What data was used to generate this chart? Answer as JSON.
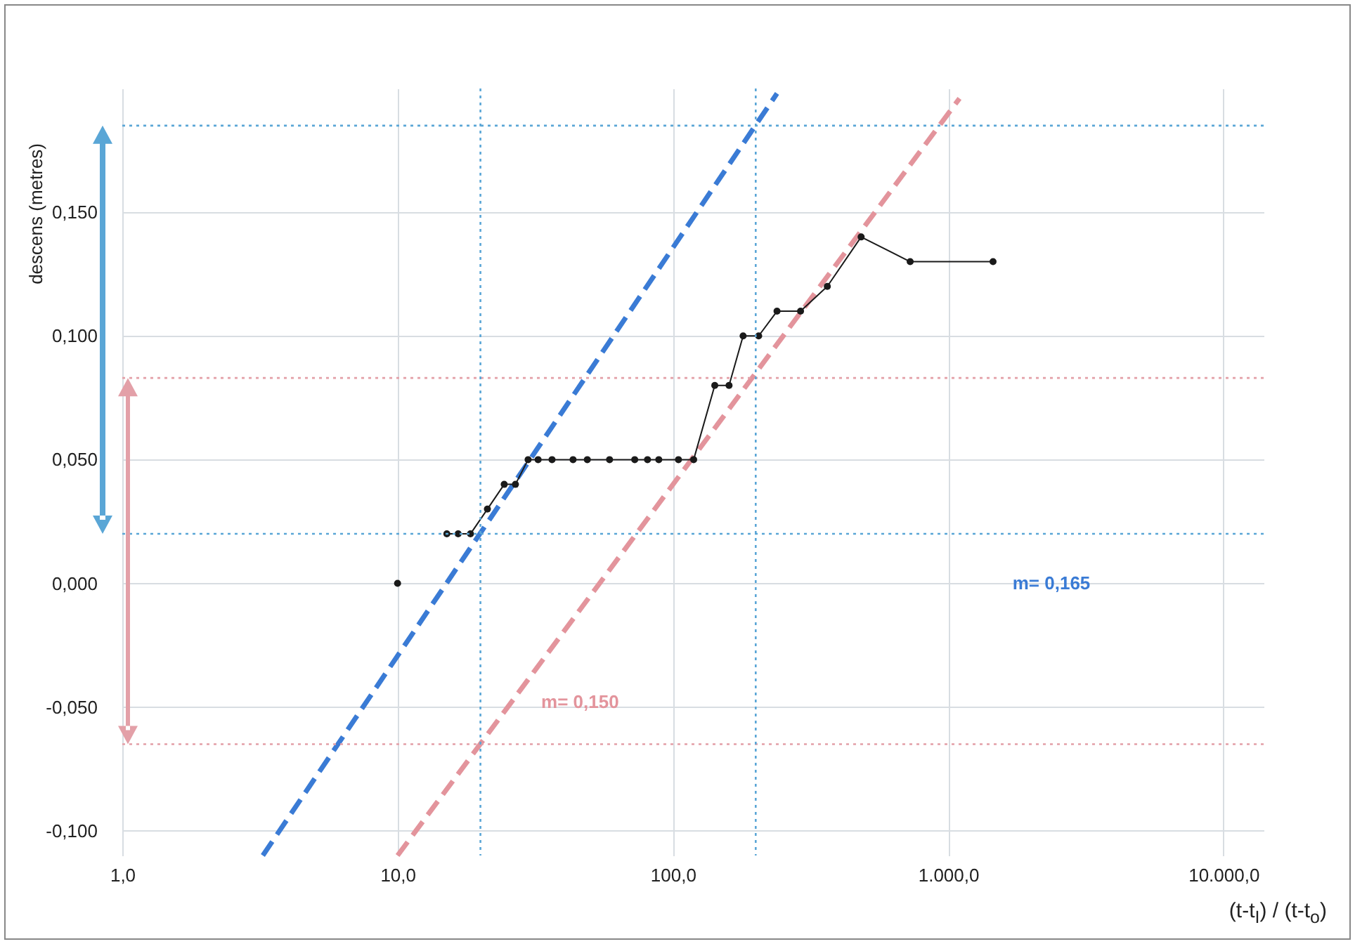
{
  "chart_data": {
    "type": "line",
    "xlabel": "(t-t$_{I}$) / (t-t$_{o}$)",
    "ylabel": "descens (metres)",
    "log": "x",
    "grid": true,
    "marker": "circle",
    "xlim": [
      1,
      14000
    ],
    "xticks": [
      {
        "value": 1,
        "label": "1,0"
      },
      {
        "value": 10,
        "label": "10,0"
      },
      {
        "value": 100,
        "label": "100,0"
      },
      {
        "value": 1000,
        "label": "1.000,0"
      },
      {
        "value": 10000,
        "label": "10.000,0"
      }
    ],
    "ylim": [
      -0.11,
      0.2
    ],
    "yticks": [
      {
        "value": -0.1,
        "label": "-0,100"
      },
      {
        "value": -0.05,
        "label": "-0,050"
      },
      {
        "value": 0,
        "label": "0,000"
      },
      {
        "value": 0.05,
        "label": "0,050"
      },
      {
        "value": 0.1,
        "label": "0,100"
      },
      {
        "value": 0.15,
        "label": "0,150"
      }
    ],
    "series": [
      {
        "type": "scatter",
        "color": "#1a1a1a",
        "x": [
          10
        ],
        "values": [
          0
        ]
      },
      {
        "type": "line",
        "color": "#1a1a1a",
        "x": [
          15.1,
          16.6,
          18.4,
          21.2,
          24.4,
          26.8,
          29.8,
          32.4,
          36.4,
          43.4,
          48.9,
          58.9,
          72.7,
          80.9,
          88.9,
          104.8,
          119,
          142,
          160,
          180,
          205,
          239,
          291,
          364,
          483,
          728,
          1456
        ],
        "values": [
          0.02,
          0.02,
          0.02,
          0.03,
          0.04,
          0.04,
          0.05,
          0.05,
          0.05,
          0.05,
          0.05,
          0.05,
          0.05,
          0.05,
          0.05,
          0.05,
          0.05,
          0.08,
          0.08,
          0.1,
          0.1,
          0.11,
          0.11,
          0.12,
          0.14,
          0.13,
          0.13
        ]
      },
      {
        "type": "line",
        "color": "#3a7bd5",
        "marker": "none",
        "line_style": "dashed",
        "x": [
          3.24,
          239
        ],
        "values": [
          -0.11,
          0.198
        ]
      },
      {
        "type": "line",
        "color": "#e3949c",
        "marker": "none",
        "line_style": "dashed",
        "x": [
          10,
          1100
        ],
        "values": [
          -0.11,
          0.196
        ]
      }
    ],
    "ref_lines": [
      {
        "axis": "y",
        "value": 0.185,
        "color": "#5aa6d6",
        "line_style": "dotted"
      },
      {
        "axis": "y",
        "value": 0.02,
        "color": "#5aa6d6",
        "line_style": "dotted"
      },
      {
        "axis": "y",
        "value": 0.083,
        "color": "#e3a0a8",
        "line_style": "dotted"
      },
      {
        "axis": "y",
        "value": -0.065,
        "color": "#e3a0a8",
        "line_style": "dotted"
      },
      {
        "axis": "x",
        "value": 20,
        "color": "#5aa6d6",
        "line_style": "dotted"
      },
      {
        "axis": "x",
        "value": 200,
        "color": "#5aa6d6",
        "line_style": "dotted"
      }
    ],
    "annotations": [
      "m= 0,165",
      "m= 0,150"
    ]
  }
}
